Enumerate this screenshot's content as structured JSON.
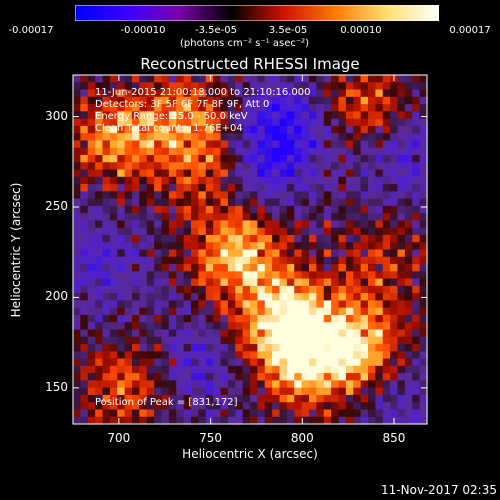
{
  "colorbar": {
    "ticks": [
      "-0.00017",
      "-0.00010",
      "-3.5e-05",
      "3.5e-05",
      "0.00010",
      "0.00017"
    ],
    "unit_label": "(photons cm⁻² s⁻¹ asec⁻²)",
    "colors": [
      "#0000ff",
      "#3a00ff",
      "#7a00aa",
      "#000000",
      "#d01000",
      "#ff7a00",
      "#ffe070",
      "#ffffff"
    ]
  },
  "overlay": {
    "time_range": "11-Jun-2015 21:00:18.000 to 21:10:16.000",
    "detectors": "Detectors: 3F 5F 6F 7F 8F 9F, Att 0",
    "energy": "Energy Range: 25.0 - 50.0 keV",
    "algorithm": "Clean    Total counts: 1.76E+04",
    "peak": "Position of Peak = [831,172]"
  },
  "footer": {
    "timestamp": "11-Nov-2017 02:35"
  },
  "chart_data": {
    "type": "heatmap",
    "title": "Reconstructed RHESSI Image",
    "xlabel": "Heliocentric X (arcsec)",
    "ylabel": "Heliocentric Y (arcsec)",
    "xlim": [
      675,
      868
    ],
    "ylim": [
      130,
      323
    ],
    "xticks": [
      700,
      750,
      800,
      850
    ],
    "yticks": [
      150,
      200,
      250,
      300
    ],
    "value_range": [
      -0.00017,
      0.00017
    ],
    "grid": false,
    "colormap": "blue-purple-black-red-yellow-white",
    "peak_position": [
      831,
      172
    ],
    "bright_regions": [
      {
        "x": 700,
        "y": 288,
        "intensity": 0.8
      },
      {
        "x": 740,
        "y": 300,
        "intensity": 0.6
      },
      {
        "x": 765,
        "y": 225,
        "intensity": 0.9
      },
      {
        "x": 790,
        "y": 190,
        "intensity": 0.9
      },
      {
        "x": 831,
        "y": 172,
        "intensity": 1.0
      },
      {
        "x": 800,
        "y": 165,
        "intensity": 0.95
      },
      {
        "x": 705,
        "y": 150,
        "intensity": 0.6
      },
      {
        "x": 835,
        "y": 305,
        "intensity": 0.6
      },
      {
        "x": 750,
        "y": 270,
        "intensity": 0.55
      },
      {
        "x": 845,
        "y": 220,
        "intensity": 0.4
      }
    ],
    "dark_regions": [
      {
        "x": 790,
        "y": 295,
        "intensity": -0.7
      },
      {
        "x": 775,
        "y": 270,
        "intensity": -0.5
      },
      {
        "x": 690,
        "y": 220,
        "intensity": -0.4
      },
      {
        "x": 740,
        "y": 160,
        "intensity": -0.4
      },
      {
        "x": 855,
        "y": 280,
        "intensity": -0.45
      },
      {
        "x": 850,
        "y": 150,
        "intensity": -0.35
      }
    ]
  }
}
